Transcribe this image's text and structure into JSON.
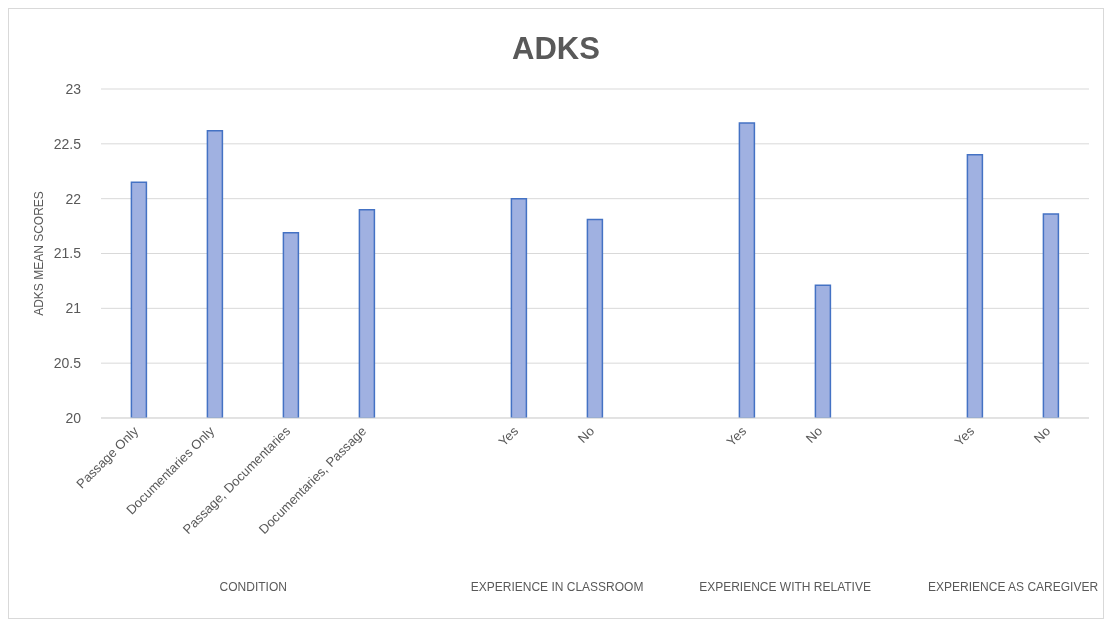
{
  "chart_data": {
    "type": "bar",
    "title": "ADKS",
    "ylabel": "ADKS MEAN SCORES",
    "categories": [
      "Passage Only",
      "Documentaries Only",
      "Passage, Documentaries",
      "Documentaries, Passage",
      null,
      "Yes",
      "No",
      null,
      "Yes",
      "No",
      null,
      "Yes",
      "No"
    ],
    "values": [
      22.15,
      22.62,
      21.69,
      21.9,
      null,
      22.0,
      21.81,
      null,
      22.69,
      21.21,
      null,
      22.4,
      21.86
    ],
    "color": "#a0b1e1",
    "ylim": [
      20,
      23
    ],
    "yticks": [
      20,
      20.5,
      21,
      21.5,
      22,
      22.5,
      23
    ],
    "grid": "y",
    "annotations": [
      "CONDITION",
      "EXPERIENCE IN CLASSROOM",
      "EXPERIENCE WITH RELATIVE",
      "EXPERIENCE AS CAREGIVER"
    ]
  }
}
